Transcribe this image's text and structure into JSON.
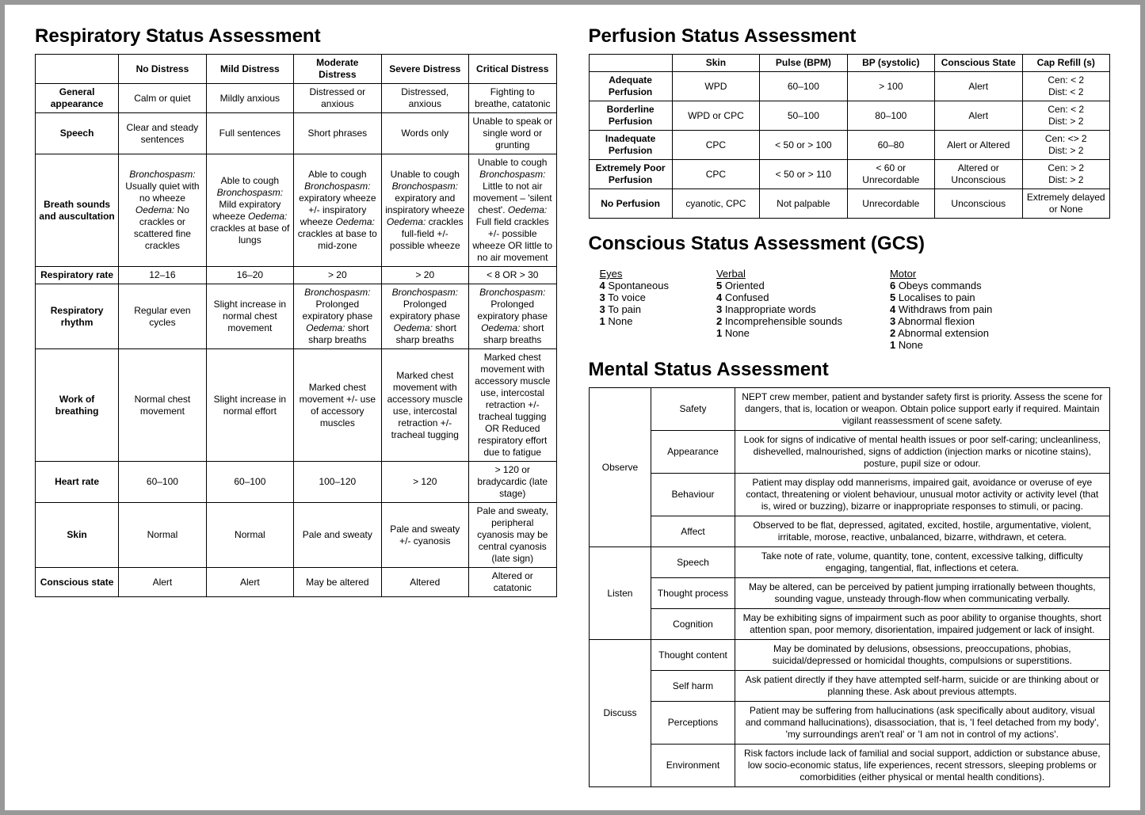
{
  "titles": {
    "respiratory": "Respiratory Status Assessment",
    "perfusion": "Perfusion Status Assessment",
    "gcs": "Conscious Status Assessment (GCS)",
    "mental": "Mental Status Assessment"
  },
  "respiratory": {
    "headers": [
      "",
      "No Distress",
      "Mild Distress",
      "Moderate Distress",
      "Severe Distress",
      "Critical Distress"
    ],
    "rows": [
      {
        "label": "General appearance",
        "cells": [
          "Calm or quiet",
          "Mildly anxious",
          "Distressed or anxious",
          "Distressed, anxious",
          "Fighting to breathe, catatonic"
        ]
      },
      {
        "label": "Speech",
        "cells": [
          "Clear and steady sentences",
          "Full sentences",
          "Short phrases",
          "Words only",
          "Unable to speak or single word or grunting"
        ]
      },
      {
        "label": "Breath sounds and auscultation",
        "cells": [
          "<em>Bronchospasm:</em> Usually quiet with no wheeze <em>Oedema:</em> No crackles or scattered fine crackles",
          "Able to cough <em>Bronchospasm:</em> Mild expiratory wheeze <em>Oedema:</em> crackles at base of lungs",
          "Able to cough <em>Bronchospasm:</em> expiratory wheeze +/- inspiratory wheeze <em>Oedema:</em> crackles at base to mid-zone",
          "Unable to cough <em>Bronchospasm:</em> expiratory and inspiratory wheeze <em>Oedema:</em> crackles full-field +/- possible wheeze",
          "Unable to cough <em>Bronchospasm:</em> Little to not air movement – 'silent chest'. <em>Oedema:</em> Full field crackles +/- possible wheeze OR little to no air movement"
        ]
      },
      {
        "label": "Respiratory rate",
        "cells": [
          "12–16",
          "16–20",
          "> 20",
          "> 20",
          "< 8 OR > 30"
        ]
      },
      {
        "label": "Respiratory rhythm",
        "cells": [
          "Regular even cycles",
          "Slight increase in normal chest movement",
          "<em>Bronchospasm:</em> Prolonged expiratory phase <em>Oedema:</em> short sharp breaths",
          "<em>Bronchospasm:</em> Prolonged expiratory phase <em>Oedema:</em> short sharp breaths",
          "<em>Bronchospasm:</em> Prolonged expiratory phase <em>Oedema:</em> short sharp breaths"
        ]
      },
      {
        "label": "Work of breathing",
        "cells": [
          "Normal chest movement",
          "Slight increase in normal effort",
          "Marked chest movement +/- use of accessory muscles",
          "Marked chest movement with accessory muscle use, intercostal retraction +/-tracheal tugging",
          "Marked chest movement with accessory muscle use, intercostal retraction +/-tracheal tugging OR Reduced respiratory effort due to fatigue"
        ]
      },
      {
        "label": "Heart rate",
        "cells": [
          "60–100",
          "60–100",
          "100–120",
          "> 120",
          "> 120 or bradycardic (late stage)"
        ]
      },
      {
        "label": "Skin",
        "cells": [
          "Normal",
          "Normal",
          "Pale and sweaty",
          "Pale and sweaty +/- cyanosis",
          "Pale and sweaty, peripheral cyanosis may be central cyanosis (late sign)"
        ]
      },
      {
        "label": "Conscious state",
        "cells": [
          "Alert",
          "Alert",
          "May be altered",
          "Altered",
          "Altered or catatonic"
        ]
      }
    ]
  },
  "perfusion": {
    "headers": [
      "",
      "Skin",
      "Pulse (BPM)",
      "BP (systolic)",
      "Conscious State",
      "Cap Refill (s)"
    ],
    "rows": [
      {
        "label": "Adequate Perfusion",
        "cells": [
          "WPD",
          "60–100",
          "> 100",
          "Alert",
          "Cen: < 2<br>Dist: < 2"
        ]
      },
      {
        "label": "Borderline Perfusion",
        "cells": [
          "WPD or CPC",
          "50–100",
          "80–100",
          "Alert",
          "Cen: < 2<br>Dist: > 2"
        ]
      },
      {
        "label": "Inadequate Perfusion",
        "cells": [
          "CPC",
          "< 50 or > 100",
          "60–80",
          "Alert or Altered",
          "Cen: <> 2<br>Dist: > 2"
        ]
      },
      {
        "label": "Extremely Poor Perfusion",
        "cells": [
          "CPC",
          "< 50 or > 110",
          "< 60 or Unrecordable",
          "Altered or Unconscious",
          "Cen: > 2<br>Dist: > 2"
        ]
      },
      {
        "label": "No Perfusion",
        "cells": [
          "cyanotic, CPC",
          "Not palpable",
          "Unrecordable",
          "Unconscious",
          "Extremely delayed or None"
        ]
      }
    ]
  },
  "gcs": {
    "eyes": {
      "title": "Eyes",
      "items": [
        [
          "4",
          "Spontaneous"
        ],
        [
          "3",
          "To voice"
        ],
        [
          "3",
          "To pain"
        ],
        [
          "1",
          "None"
        ]
      ]
    },
    "verbal": {
      "title": "Verbal",
      "items": [
        [
          "5",
          "Oriented"
        ],
        [
          "4",
          "Confused"
        ],
        [
          "3",
          "Inappropriate words"
        ],
        [
          "2",
          "Incomprehensible sounds"
        ],
        [
          "1",
          "None"
        ]
      ]
    },
    "motor": {
      "title": "Motor",
      "items": [
        [
          "6",
          "Obeys commands"
        ],
        [
          "5",
          "Localises to pain"
        ],
        [
          "4",
          "Withdraws from pain"
        ],
        [
          "3",
          "Abnormal flexion"
        ],
        [
          "2",
          "Abnormal extension"
        ],
        [
          "1",
          "None"
        ]
      ]
    }
  },
  "mental": {
    "groups": [
      {
        "name": "Observe",
        "items": [
          {
            "sub": "Safety",
            "desc": "NEPT crew member, patient and bystander safety first is priority. Assess the scene for dangers, that is, location or weapon. Obtain police support early if required. Maintain vigilant reassessment of scene safety."
          },
          {
            "sub": "Appearance",
            "desc": "Look for signs of indicative of mental health issues or poor self-caring; uncleanliness, dishevelled, malnourished, signs of addiction (injection marks or nicotine stains), posture, pupil size or odour."
          },
          {
            "sub": "Behaviour",
            "desc": "Patient may display odd mannerisms, impaired gait, avoidance or overuse of eye contact, threatening or violent behaviour, unusual motor activity or activity level (that is, wired or buzzing), bizarre or inappropriate responses to stimuli, or pacing."
          },
          {
            "sub": "Affect",
            "desc": "Observed to be flat, depressed, agitated, excited, hostile, argumentative, violent, irritable, morose, reactive, unbalanced, bizarre, withdrawn, et cetera."
          }
        ]
      },
      {
        "name": "Listen",
        "items": [
          {
            "sub": "Speech",
            "desc": "Take note of rate, volume, quantity, tone, content, excessive talking, difficulty engaging, tangential, flat, inflections et cetera."
          },
          {
            "sub": "Thought process",
            "desc": "May be altered, can be perceived by patient jumping irrationally between thoughts, sounding vague, unsteady through-flow when communicating verbally."
          },
          {
            "sub": "Cognition",
            "desc": "May be exhibiting signs of impairment such as poor ability to organise thoughts, short attention span, poor memory, disorientation, impaired judgement or lack of insight."
          }
        ]
      },
      {
        "name": "Discuss",
        "items": [
          {
            "sub": "Thought content",
            "desc": "May be dominated by delusions, obsessions, preoccupations, phobias, suicidal/depressed or homicidal thoughts, compulsions or superstitions."
          },
          {
            "sub": "Self harm",
            "desc": "Ask patient directly if they have attempted self-harm, suicide or are thinking about or planning these. Ask about previous attempts."
          },
          {
            "sub": "Perceptions",
            "desc": "Patient may be suffering from hallucinations (ask specifically about auditory, visual and command hallucinations), disassociation, that is, 'I feel detached from my body', 'my surroundings aren't real' or 'I am not in control of my actions'."
          },
          {
            "sub": "Environment",
            "desc": "Risk factors include lack of familial and social support, addiction or substance abuse, low socio-economic status, life experiences, recent stressors, sleeping problems or comorbidities (either physical or mental health conditions)."
          }
        ]
      }
    ]
  }
}
